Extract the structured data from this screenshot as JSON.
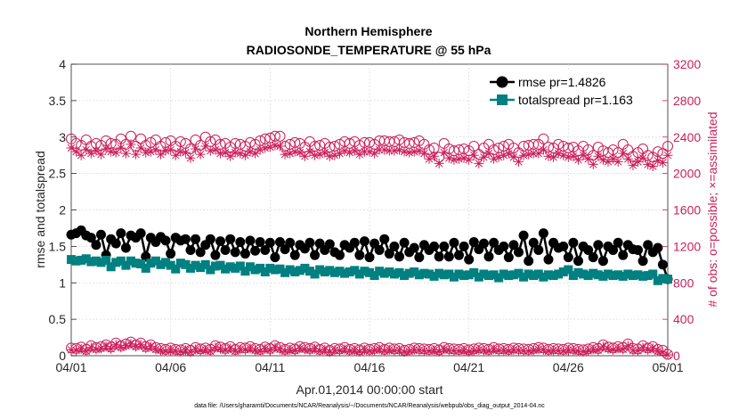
{
  "chart_data": {
    "type": "line",
    "title": "Northern Hemisphere",
    "subtitle": "RADIOSONDE_TEMPERATURE @ 55 hPa",
    "xlabel": "Apr.01,2014 00:00:00 start",
    "ylabel_left": "rmse and totalspread",
    "ylabel_right": "# of obs: o=possible; ×=assimilated",
    "xlim": [
      0,
      30
    ],
    "ylim_left": [
      0,
      4
    ],
    "ylim_right": [
      0,
      3200
    ],
    "x_ticks": [
      0,
      5,
      10,
      15,
      20,
      25,
      30
    ],
    "x_tick_labels": [
      "04/01",
      "04/06",
      "04/11",
      "04/16",
      "04/21",
      "04/26",
      "05/01"
    ],
    "y_ticks_left": [
      0,
      0.5,
      1,
      1.5,
      2,
      2.5,
      3,
      3.5,
      4
    ],
    "y_tick_labels_left": [
      "0",
      "0.5",
      "1",
      "1.5",
      "2",
      "2.5",
      "3",
      "3.5",
      "4"
    ],
    "y_ticks_right": [
      0,
      400,
      800,
      1200,
      1600,
      2000,
      2400,
      2800,
      3200
    ],
    "y_tick_labels_right": [
      "0",
      "400",
      "800",
      "1200",
      "1600",
      "2000",
      "2400",
      "2800",
      "3200"
    ],
    "colors": {
      "rmse": "#000000",
      "spread": "#008080",
      "obs": "#cc1e5a"
    },
    "x": [
      0,
      0.25,
      0.5,
      0.75,
      1,
      1.25,
      1.5,
      1.75,
      2,
      2.25,
      2.5,
      2.75,
      3,
      3.25,
      3.5,
      3.75,
      4,
      4.25,
      4.5,
      4.75,
      5,
      5.25,
      5.5,
      5.75,
      6,
      6.25,
      6.5,
      6.75,
      7,
      7.25,
      7.5,
      7.75,
      8,
      8.25,
      8.5,
      8.75,
      9,
      9.25,
      9.5,
      9.75,
      10,
      10.25,
      10.5,
      10.75,
      11,
      11.25,
      11.5,
      11.75,
      12,
      12.25,
      12.5,
      12.75,
      13,
      13.25,
      13.5,
      13.75,
      14,
      14.25,
      14.5,
      14.75,
      15,
      15.25,
      15.5,
      15.75,
      16,
      16.25,
      16.5,
      16.75,
      17,
      17.25,
      17.5,
      17.75,
      18,
      18.25,
      18.5,
      18.75,
      19,
      19.25,
      19.5,
      19.75,
      20,
      20.25,
      20.5,
      20.75,
      21,
      21.25,
      21.5,
      21.75,
      22,
      22.25,
      22.5,
      22.75,
      23,
      23.25,
      23.5,
      23.75,
      24,
      24.25,
      24.5,
      24.75,
      25,
      25.25,
      25.5,
      25.75,
      26,
      26.25,
      26.5,
      26.75,
      27,
      27.25,
      27.5,
      27.75,
      28,
      28.25,
      28.5,
      28.75,
      29,
      29.25,
      29.5,
      29.75,
      30
    ],
    "series": [
      {
        "name": "rmse pr=1.4826",
        "axis": "left",
        "marker": "filled-circle",
        "values": [
          1.66,
          1.68,
          1.72,
          1.65,
          1.62,
          1.52,
          1.66,
          1.38,
          1.6,
          1.54,
          1.68,
          1.48,
          1.65,
          1.62,
          1.68,
          1.36,
          1.62,
          1.56,
          1.63,
          1.58,
          1.4,
          1.62,
          1.58,
          1.6,
          1.45,
          1.6,
          1.42,
          1.52,
          1.6,
          1.38,
          1.57,
          1.45,
          1.6,
          1.42,
          1.56,
          1.4,
          1.58,
          1.44,
          1.56,
          1.45,
          1.55,
          1.35,
          1.56,
          1.46,
          1.55,
          1.38,
          1.52,
          1.47,
          1.55,
          1.38,
          1.54,
          1.45,
          1.53,
          1.42,
          1.38,
          1.52,
          1.48,
          1.55,
          1.38,
          1.57,
          1.35,
          1.54,
          1.45,
          1.6,
          1.4,
          1.5,
          1.36,
          1.55,
          1.42,
          1.48,
          1.35,
          1.52,
          1.45,
          1.5,
          1.36,
          1.5,
          1.36,
          1.55,
          1.38,
          1.5,
          1.32,
          1.56,
          1.46,
          1.54,
          1.36,
          1.55,
          1.45,
          1.5,
          1.35,
          1.52,
          1.42,
          1.65,
          1.3,
          1.55,
          1.45,
          1.68,
          1.32,
          1.55,
          1.48,
          1.5,
          1.35,
          1.55,
          1.3,
          1.5,
          1.45,
          1.35,
          1.52,
          1.3,
          1.5,
          1.45,
          1.55,
          1.38,
          1.52,
          1.46,
          1.45,
          1.3,
          1.52,
          1.42,
          1.48,
          1.25,
          1.05
        ]
      },
      {
        "name": "totalspread pr=1.163",
        "axis": "left",
        "marker": "filled-square",
        "values": [
          1.32,
          1.3,
          1.31,
          1.33,
          1.29,
          1.3,
          1.28,
          1.31,
          1.22,
          1.28,
          1.3,
          1.24,
          1.3,
          1.27,
          1.26,
          1.2,
          1.27,
          1.3,
          1.25,
          1.28,
          1.24,
          1.19,
          1.27,
          1.25,
          1.2,
          1.24,
          1.21,
          1.25,
          1.18,
          1.23,
          1.24,
          1.19,
          1.22,
          1.2,
          1.23,
          1.16,
          1.22,
          1.18,
          1.2,
          1.15,
          1.2,
          1.18,
          1.19,
          1.14,
          1.18,
          1.15,
          1.17,
          1.2,
          1.16,
          1.12,
          1.18,
          1.15,
          1.17,
          1.14,
          1.16,
          1.13,
          1.15,
          1.17,
          1.12,
          1.16,
          1.14,
          1.1,
          1.16,
          1.13,
          1.15,
          1.12,
          1.14,
          1.1,
          1.13,
          1.15,
          1.11,
          1.13,
          1.12,
          1.09,
          1.13,
          1.11,
          1.12,
          1.08,
          1.12,
          1.1,
          1.11,
          1.14,
          1.08,
          1.12,
          1.1,
          1.11,
          1.07,
          1.12,
          1.1,
          1.11,
          1.13,
          1.08,
          1.12,
          1.1,
          1.12,
          1.08,
          1.11,
          1.1,
          1.12,
          1.15,
          1.18,
          1.1,
          1.14,
          1.12,
          1.1,
          1.13,
          1.11,
          1.09,
          1.12,
          1.1,
          1.11,
          1.09,
          1.12,
          1.1,
          1.11,
          1.09,
          1.1,
          1.12,
          1.03,
          1.06,
          1.05
        ]
      },
      {
        "name": "possible",
        "axis": "right",
        "marker": "open-circle",
        "values": [
          2380,
          2330,
          2310,
          2370,
          2300,
          2330,
          2310,
          2360,
          2330,
          2320,
          2380,
          2320,
          2410,
          2300,
          2380,
          2310,
          2340,
          2370,
          2300,
          2340,
          2360,
          2300,
          2350,
          2330,
          2270,
          2370,
          2310,
          2400,
          2350,
          2370,
          2320,
          2330,
          2290,
          2330,
          2320,
          2300,
          2340,
          2320,
          2360,
          2380,
          2390,
          2410,
          2410,
          2300,
          2320,
          2340,
          2330,
          2290,
          2350,
          2300,
          2310,
          2330,
          2290,
          2300,
          2320,
          2350,
          2330,
          2350,
          2310,
          2340,
          2340,
          2320,
          2360,
          2360,
          2350,
          2350,
          2370,
          2340,
          2330,
          2340,
          2360,
          2320,
          2260,
          2280,
          2180,
          2330,
          2270,
          2250,
          2260,
          2270,
          2250,
          2300,
          2210,
          2280,
          2320,
          2260,
          2280,
          2300,
          2320,
          2280,
          2230,
          2300,
          2310,
          2320,
          2320,
          2380,
          2290,
          2280,
          2320,
          2300,
          2280,
          2290,
          2250,
          2300,
          2260,
          2200,
          2290,
          2250,
          2230,
          2260,
          2230,
          2320,
          2260,
          2190,
          2230,
          2270,
          2200,
          2180,
          2240,
          2220,
          2300
        ]
      },
      {
        "name": "assimilated",
        "axis": "right",
        "marker": "asterisk",
        "values": [
          2280,
          2240,
          2200,
          2260,
          2220,
          2250,
          2210,
          2270,
          2240,
          2230,
          2280,
          2220,
          2320,
          2210,
          2280,
          2230,
          2240,
          2260,
          2210,
          2250,
          2260,
          2200,
          2240,
          2230,
          2170,
          2270,
          2210,
          2300,
          2250,
          2260,
          2220,
          2230,
          2190,
          2230,
          2220,
          2200,
          2240,
          2220,
          2260,
          2280,
          2290,
          2310,
          2300,
          2210,
          2220,
          2240,
          2230,
          2190,
          2240,
          2200,
          2210,
          2230,
          2190,
          2200,
          2220,
          2250,
          2230,
          2250,
          2210,
          2240,
          2240,
          2220,
          2260,
          2260,
          2250,
          2250,
          2260,
          2240,
          2230,
          2240,
          2250,
          2220,
          2160,
          2190,
          2110,
          2230,
          2170,
          2150,
          2160,
          2170,
          2150,
          2200,
          2110,
          2180,
          2220,
          2160,
          2180,
          2200,
          2220,
          2180,
          2130,
          2200,
          2210,
          2220,
          2220,
          2260,
          2190,
          2180,
          2220,
          2200,
          2180,
          2190,
          2150,
          2200,
          2160,
          2100,
          2190,
          2150,
          2130,
          2160,
          2130,
          2220,
          2160,
          2090,
          2130,
          2170,
          2100,
          2080,
          2140,
          2120,
          2200
        ]
      },
      {
        "name": "possible",
        "axis": "right",
        "marker": "open-circle",
        "values": [
          85,
          80,
          95,
          70,
          110,
          90,
          100,
          120,
          95,
          140,
          110,
          130,
          150,
          120,
          140,
          100,
          120,
          90,
          80,
          70,
          85,
          70,
          65,
          80,
          60,
          90,
          75,
          85,
          70,
          110,
          95,
          80,
          100,
          70,
          90,
          85,
          100,
          80,
          70,
          95,
          80,
          110,
          90,
          70,
          85,
          75,
          100,
          90,
          80,
          95,
          70,
          85,
          60,
          80,
          75,
          90,
          70,
          80,
          65,
          85,
          70,
          80,
          90,
          70,
          85,
          75,
          80,
          60,
          70,
          85,
          80,
          75,
          70,
          80,
          65,
          90,
          80,
          75,
          70,
          80,
          65,
          75,
          85,
          80,
          70,
          90,
          75,
          80,
          70,
          85,
          80,
          75,
          70,
          80,
          90,
          85,
          70,
          80,
          75,
          70,
          85,
          80,
          70,
          65,
          75,
          90,
          80,
          120,
          95,
          85,
          100,
          90,
          130,
          80,
          75,
          110,
          85,
          100,
          70,
          60,
          15
        ]
      },
      {
        "name": "assimilated",
        "axis": "right",
        "marker": "asterisk",
        "values": [
          65,
          60,
          75,
          50,
          90,
          70,
          80,
          100,
          75,
          120,
          90,
          110,
          130,
          100,
          120,
          80,
          100,
          70,
          60,
          50,
          65,
          50,
          45,
          60,
          40,
          70,
          55,
          65,
          50,
          90,
          75,
          60,
          80,
          50,
          70,
          65,
          80,
          60,
          50,
          75,
          60,
          90,
          70,
          50,
          65,
          55,
          80,
          70,
          60,
          75,
          50,
          65,
          40,
          60,
          55,
          70,
          50,
          60,
          45,
          65,
          50,
          60,
          70,
          50,
          65,
          55,
          60,
          40,
          50,
          65,
          60,
          55,
          50,
          60,
          45,
          70,
          60,
          55,
          50,
          60,
          45,
          55,
          65,
          60,
          50,
          70,
          55,
          60,
          50,
          65,
          60,
          55,
          50,
          60,
          70,
          65,
          50,
          60,
          55,
          50,
          65,
          60,
          50,
          45,
          55,
          70,
          60,
          100,
          75,
          65,
          80,
          70,
          110,
          60,
          55,
          90,
          65,
          80,
          50,
          40,
          10
        ]
      }
    ],
    "legend": [
      {
        "label": "rmse pr=1.4826",
        "marker": "filled-circle",
        "color": "#000000"
      },
      {
        "label": "totalspread pr=1.163",
        "marker": "filled-square",
        "color": "#008080"
      }
    ],
    "legend_position": "top-right",
    "footnote": "data file: /Users/gharamti/Documents/NCAR/Reanalysis/~/Documents/NCAR/Reanalysis/webpub/obs_diag_output_2014-04.nc"
  }
}
